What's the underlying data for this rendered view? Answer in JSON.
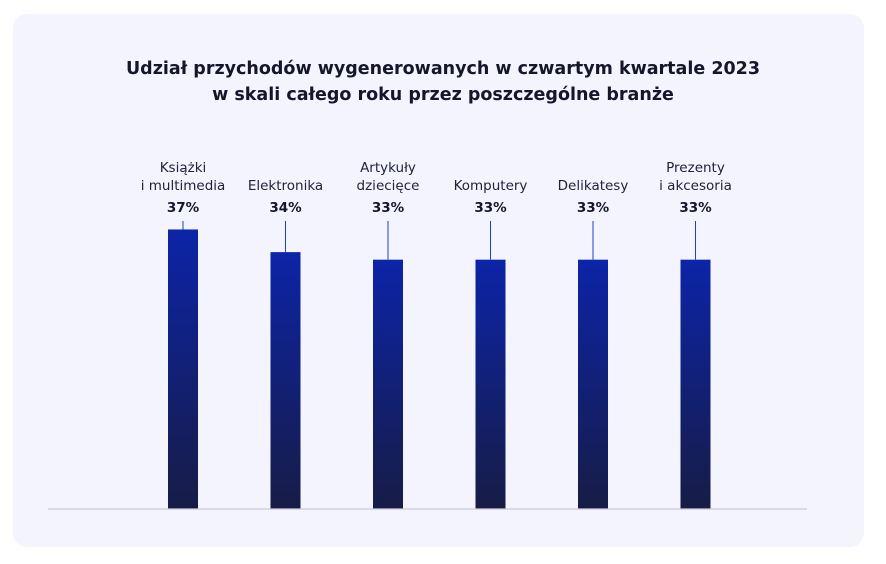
{
  "chart_data": {
    "type": "bar",
    "title_lines": [
      "Udział przychodów wygenerowanych w czwartym kwartale 2023",
      "w skali całego roku przez poszczególne branże"
    ],
    "categories": [
      [
        "Książki",
        "i multimedia"
      ],
      [
        "Elektronika"
      ],
      [
        "Artykuły",
        "dziecięce"
      ],
      [
        "Komputery"
      ],
      [
        "Delikatesy"
      ],
      [
        "Prezenty",
        "i akcesoria"
      ]
    ],
    "values": [
      37,
      34,
      33,
      33,
      33,
      33
    ],
    "value_labels": [
      "37%",
      "34%",
      "33%",
      "33%",
      "33%",
      "33%"
    ],
    "ylim": [
      0,
      40
    ],
    "grid": false,
    "legend": "none",
    "colors": {
      "bar_top": "#0c24a8",
      "bar_bottom": "#171c45",
      "leader_line": "#1e3fd0",
      "baseline": "#c9cbd9",
      "card_bg": "#f3f4fd"
    }
  }
}
